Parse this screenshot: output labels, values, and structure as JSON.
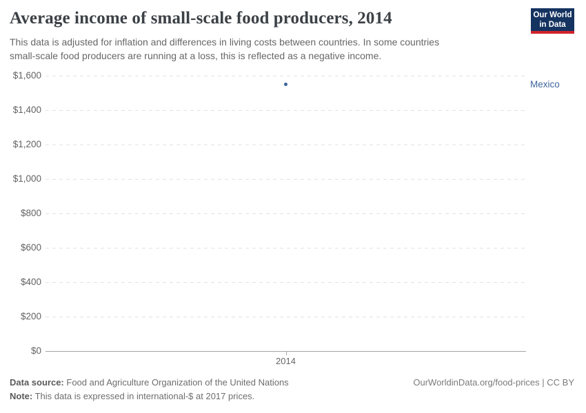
{
  "header": {
    "title": "Average income of small-scale food producers, 2014",
    "subtitle_lines": [
      "This data is adjusted for inflation and differences in living costs between countries. In some countries",
      "small-scale food producers are running at a loss, this is reflected as a negative income."
    ],
    "logo": {
      "line1": "Our World",
      "line2": "in Data",
      "bg_color": "#153360",
      "accent_color": "#d1232a"
    }
  },
  "chart_data": {
    "type": "scatter",
    "title": "Average income of small-scale food producers, 2014",
    "subtitle": "This data is adjusted for inflation and differences in living costs between countries. In some countries small-scale food producers are running at a loss, this is reflected as a negative income.",
    "x": [
      2014
    ],
    "xtick_labels": [
      "2014"
    ],
    "series": [
      {
        "name": "Mexico",
        "x": [
          2014
        ],
        "values": [
          1550
        ],
        "color": "#3d649c"
      }
    ],
    "ylabel": "",
    "xlabel": "",
    "ylim": [
      0,
      1600
    ],
    "yticks": [
      {
        "value": 0,
        "label": "$0"
      },
      {
        "value": 200,
        "label": "$200"
      },
      {
        "value": 400,
        "label": "$400"
      },
      {
        "value": 600,
        "label": "$600"
      },
      {
        "value": 800,
        "label": "$800"
      },
      {
        "value": 1000,
        "label": "$1,000"
      },
      {
        "value": 1200,
        "label": "$1,200"
      },
      {
        "value": 1400,
        "label": "$1,400"
      },
      {
        "value": 1600,
        "label": "$1,600"
      }
    ],
    "grid": "horizontal-dashed",
    "legend_position": "right-of-data-point"
  },
  "footer": {
    "datasource_label": "Data source:",
    "datasource_text": "Food and Agriculture Organization of the United Nations",
    "note_label": "Note:",
    "note_text": "This data is expressed in international-$ at 2017 prices.",
    "attribution": "OurWorldinData.org/food-prices | CC BY"
  },
  "colors": {
    "title_text": "#3c4146",
    "subtitle_text": "#666666",
    "tick_text": "#636363",
    "gridline": "#e2e2e2",
    "axis_line": "#a3a3a3",
    "point_blue": "#3d649c"
  }
}
